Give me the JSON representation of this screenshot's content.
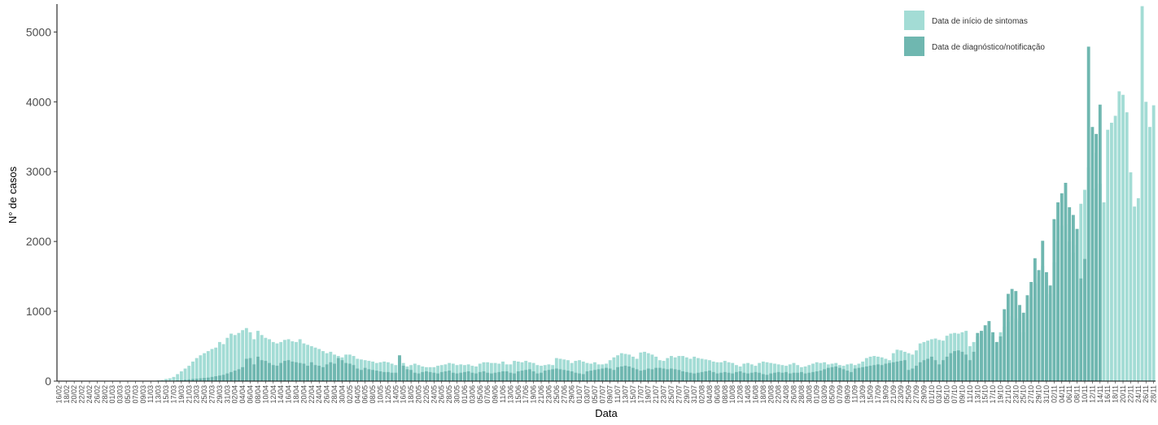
{
  "chart_data": {
    "type": "bar",
    "xlabel": "Data",
    "ylabel": "N° de casos",
    "ylim": [
      0,
      5400
    ],
    "yticks": [
      0,
      1000,
      2000,
      3000,
      4000,
      5000
    ],
    "grid": false,
    "legend_position": "top-right",
    "start_date": "2020-02-16",
    "date_tick_every": 2,
    "series": [
      {
        "name": "Data de início de sintomas",
        "color": "#a3dcd5",
        "values": [
          0,
          0,
          0,
          0,
          0,
          0,
          0,
          0,
          0,
          0,
          0,
          0,
          0,
          0,
          0,
          0,
          0,
          0,
          0,
          0,
          0,
          0,
          0,
          0,
          0,
          5,
          10,
          15,
          30,
          40,
          60,
          100,
          140,
          180,
          220,
          280,
          330,
          370,
          400,
          430,
          460,
          480,
          560,
          530,
          620,
          680,
          660,
          690,
          730,
          760,
          700,
          600,
          720,
          660,
          620,
          600,
          560,
          540,
          560,
          590,
          600,
          570,
          560,
          600,
          540,
          520,
          500,
          480,
          460,
          430,
          400,
          420,
          380,
          360,
          340,
          380,
          380,
          360,
          320,
          310,
          300,
          290,
          280,
          260,
          270,
          280,
          270,
          250,
          230,
          340,
          260,
          210,
          230,
          250,
          230,
          210,
          200,
          200,
          200,
          220,
          230,
          240,
          260,
          250,
          230,
          240,
          230,
          240,
          220,
          210,
          250,
          270,
          270,
          260,
          260,
          250,
          280,
          240,
          240,
          290,
          280,
          270,
          290,
          270,
          260,
          230,
          220,
          230,
          240,
          230,
          330,
          320,
          310,
          300,
          260,
          290,
          300,
          280,
          260,
          250,
          270,
          240,
          240,
          250,
          300,
          340,
          370,
          400,
          390,
          380,
          350,
          320,
          410,
          420,
          400,
          380,
          350,
          300,
          290,
          330,
          360,
          340,
          360,
          360,
          340,
          320,
          350,
          330,
          320,
          310,
          300,
          280,
          270,
          270,
          290,
          270,
          260,
          230,
          210,
          250,
          260,
          240,
          220,
          260,
          280,
          270,
          260,
          250,
          240,
          230,
          220,
          240,
          260,
          230,
          200,
          210,
          230,
          250,
          270,
          260,
          270,
          240,
          250,
          260,
          230,
          220,
          240,
          250,
          230,
          250,
          280,
          330,
          350,
          360,
          350,
          340,
          320,
          300,
          400,
          450,
          440,
          420,
          400,
          380,
          440,
          540,
          560,
          580,
          600,
          610,
          590,
          580,
          650,
          680,
          690,
          680,
          700,
          720,
          500,
          560,
          640,
          680,
          720,
          740,
          650,
          560,
          700,
          780,
          850,
          930,
          900,
          860,
          700,
          880,
          1200,
          1400,
          1500,
          1650,
          1450,
          1250,
          1700,
          2000,
          2230,
          2250,
          2000,
          1840,
          1950,
          2540,
          2740,
          3060,
          2760,
          3270,
          2830,
          2560,
          3600,
          3700,
          3800,
          4150,
          4100,
          3850,
          2990,
          2500,
          2620,
          5370,
          4000,
          3640,
          3950
        ],
        "raw_note": ""
      },
      {
        "name": "Data de diagnóstico/notificação",
        "color": "#6fb7b0",
        "values": [
          0,
          0,
          0,
          0,
          0,
          0,
          0,
          0,
          0,
          0,
          0,
          0,
          0,
          0,
          0,
          0,
          0,
          0,
          0,
          0,
          0,
          0,
          0,
          0,
          0,
          0,
          0,
          0,
          0,
          2,
          5,
          10,
          15,
          20,
          25,
          30,
          35,
          40,
          45,
          50,
          60,
          70,
          80,
          90,
          110,
          130,
          150,
          170,
          200,
          320,
          330,
          240,
          350,
          300,
          290,
          260,
          230,
          220,
          260,
          290,
          300,
          280,
          270,
          260,
          250,
          220,
          270,
          230,
          220,
          200,
          240,
          270,
          250,
          330,
          300,
          260,
          250,
          230,
          180,
          160,
          190,
          170,
          160,
          150,
          140,
          130,
          130,
          120,
          120,
          370,
          220,
          170,
          160,
          120,
          110,
          130,
          140,
          130,
          120,
          110,
          130,
          140,
          150,
          120,
          110,
          120,
          130,
          140,
          120,
          110,
          130,
          140,
          120,
          110,
          120,
          130,
          140,
          140,
          120,
          110,
          140,
          150,
          160,
          170,
          140,
          110,
          120,
          150,
          160,
          170,
          180,
          170,
          160,
          150,
          140,
          120,
          110,
          100,
          140,
          150,
          160,
          170,
          180,
          190,
          180,
          160,
          200,
          210,
          220,
          210,
          190,
          170,
          150,
          160,
          180,
          170,
          190,
          190,
          180,
          170,
          180,
          170,
          160,
          140,
          130,
          120,
          110,
          120,
          130,
          140,
          150,
          130,
          110,
          120,
          130,
          120,
          110,
          130,
          140,
          120,
          110,
          120,
          130,
          120,
          100,
          90,
          110,
          120,
          130,
          120,
          130,
          110,
          120,
          120,
          130,
          110,
          120,
          130,
          140,
          150,
          170,
          190,
          200,
          210,
          190,
          170,
          150,
          130,
          180,
          190,
          200,
          210,
          220,
          230,
          240,
          230,
          250,
          260,
          270,
          280,
          290,
          300,
          160,
          180,
          220,
          270,
          300,
          320,
          350,
          300,
          240,
          300,
          350,
          400,
          430,
          440,
          420,
          380,
          300,
          420,
          690,
          720,
          800,
          860,
          700,
          560,
          640,
          1030,
          1250,
          1320,
          1290,
          1090,
          980,
          1230,
          1420,
          1760,
          1590,
          2010,
          1560,
          1370,
          2320,
          2560,
          2690,
          2840,
          2490,
          2380,
          2180,
          1470,
          1750,
          4790,
          3640,
          3540,
          3960
        ],
        "raw_note": ""
      }
    ]
  }
}
